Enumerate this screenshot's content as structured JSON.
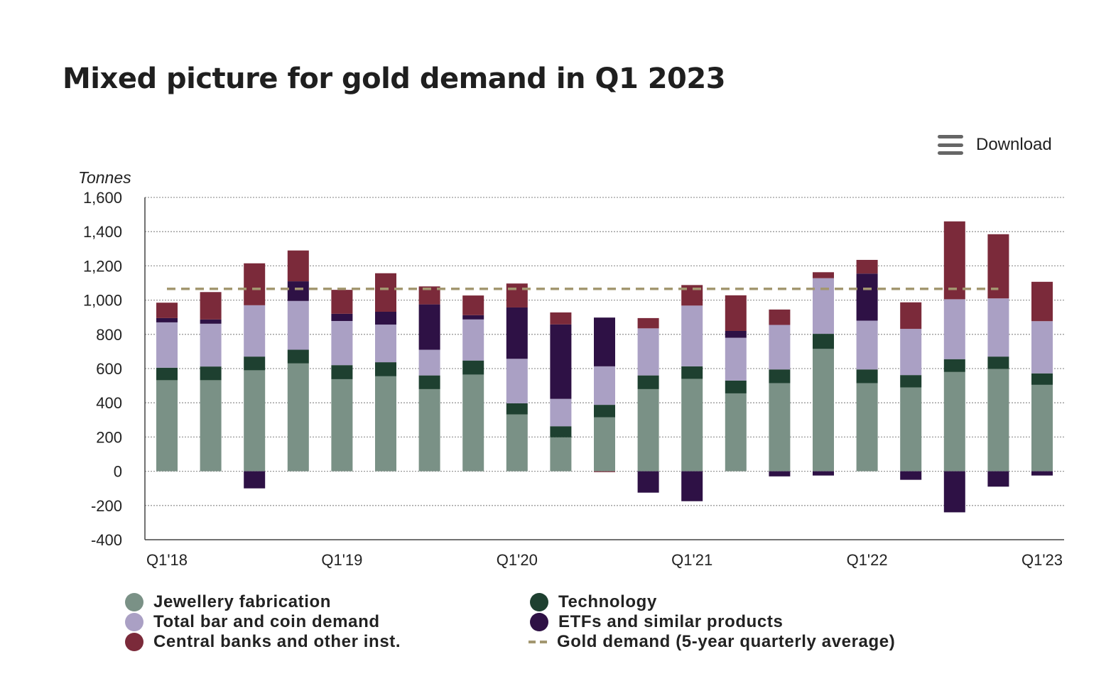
{
  "title": "Mixed picture for gold demand in Q1 2023",
  "download_label": "Download",
  "chart_data": {
    "type": "bar",
    "stacked": true,
    "ylabel": "Tonnes",
    "ylim": [
      -400,
      1600
    ],
    "yticks": [
      -400,
      -200,
      0,
      200,
      400,
      600,
      800,
      1000,
      1200,
      1400,
      1600
    ],
    "ytick_labels": [
      "-400",
      "-200",
      "0",
      "200",
      "400",
      "600",
      "800",
      "1,000",
      "1,200",
      "1,400",
      "1,600"
    ],
    "grid": true,
    "legend_position": "bottom",
    "x_tick_labels": [
      {
        "index": 0,
        "label": "Q1'18"
      },
      {
        "index": 4,
        "label": "Q1'19"
      },
      {
        "index": 8,
        "label": "Q1'20"
      },
      {
        "index": 12,
        "label": "Q1'21"
      },
      {
        "index": 16,
        "label": "Q1'22"
      },
      {
        "index": 20,
        "label": "Q1'23"
      }
    ],
    "series": [
      {
        "name": "Jewellery fabrication",
        "color": "#7a9186",
        "values": [
          532,
          532,
          590,
          630,
          538,
          555,
          480,
          565,
          332,
          198,
          315,
          480,
          540,
          455,
          515,
          715,
          515,
          490,
          580,
          598,
          505
        ]
      },
      {
        "name": "Technology",
        "color": "#1e4030",
        "values": [
          73,
          80,
          80,
          80,
          82,
          82,
          80,
          82,
          65,
          65,
          73,
          80,
          73,
          75,
          80,
          88,
          80,
          72,
          75,
          72,
          67
        ]
      },
      {
        "name": "Total bar and coin demand",
        "color": "#aaa0c4",
        "values": [
          265,
          250,
          300,
          285,
          258,
          220,
          150,
          240,
          260,
          160,
          225,
          275,
          355,
          250,
          260,
          325,
          285,
          270,
          350,
          340,
          305
        ]
      },
      {
        "name": "ETFs and similar products",
        "color": "#2e1145",
        "values": [
          25,
          25,
          -100,
          115,
          42,
          75,
          265,
          25,
          300,
          435,
          285,
          -125,
          -175,
          40,
          -30,
          -25,
          275,
          -50,
          -240,
          -90,
          -25
        ]
      },
      {
        "name": "Central banks and other inst.",
        "color": "#7b2a3a",
        "values": [
          90,
          160,
          245,
          180,
          140,
          225,
          105,
          115,
          140,
          70,
          -5,
          60,
          120,
          208,
          90,
          35,
          80,
          155,
          455,
          375,
          230
        ]
      },
      {
        "name": "Gold demand (5-year quarterly average)",
        "type": "line",
        "color": "#a39770",
        "values": [
          1066,
          1066,
          1066,
          1066,
          1066,
          1066,
          1066,
          1066,
          1066,
          1066,
          1066,
          1066,
          1066,
          1066,
          1066,
          1066,
          1066,
          1066,
          1066,
          1066,
          null
        ]
      }
    ]
  }
}
